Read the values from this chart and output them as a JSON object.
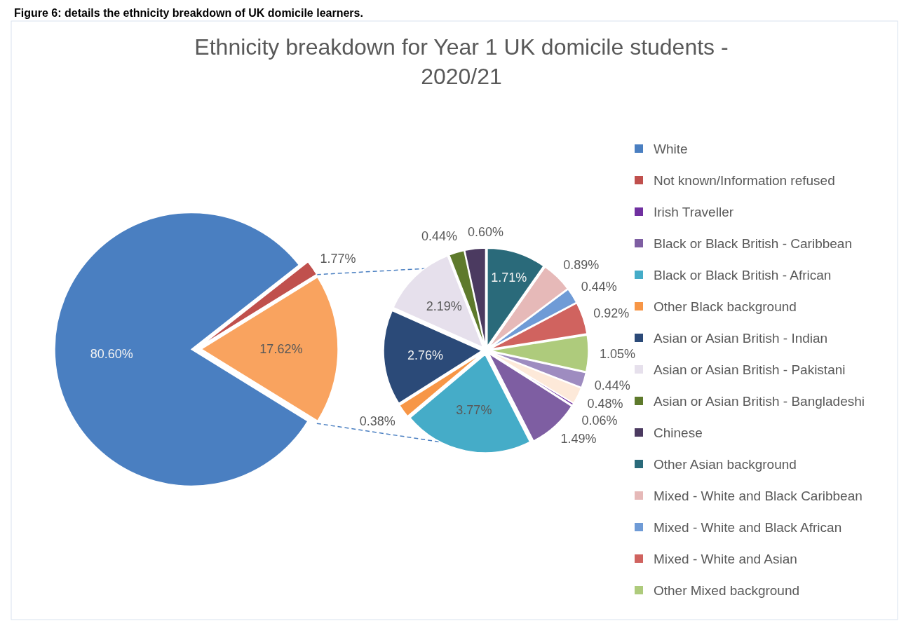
{
  "chart_data": [
    {
      "type": "pie",
      "title": "Ethnicity breakdown for Year 1 UK domicile students - 2020/21",
      "annotations": [
        "Figure 6: details the ethnicity breakdown of UK domicile learners."
      ],
      "categories": [
        "White",
        "Not known/Information refused",
        null
      ],
      "values": [
        80.6,
        1.77,
        17.62
      ],
      "value_labels": [
        "80.60%",
        "1.77%",
        "17.62%"
      ],
      "colors": [
        "#4a7fc1",
        "#c0504d",
        "#f9a35f"
      ],
      "legend": "right"
    },
    {
      "type": "pie",
      "categories": [
        "Irish Traveller",
        "Black or Black British - Caribbean",
        "Black or Black British - African",
        "Other Black background",
        "Asian or Asian British - Indian",
        "Asian or Asian British - Pakistani",
        "Asian or Asian British - Bangladeshi",
        "Chinese",
        "Other Asian background",
        "Mixed - White and Black Caribbean",
        "Mixed - White and Black African",
        "Mixed - White and Asian",
        "Other Mixed background",
        null,
        null
      ],
      "values": [
        0.06,
        1.49,
        3.77,
        0.38,
        2.76,
        2.19,
        0.44,
        0.6,
        1.71,
        0.89,
        0.44,
        0.92,
        1.05,
        0.44,
        0.48
      ],
      "value_labels": [
        "0.06%",
        "1.49%",
        "3.77%",
        "0.38%",
        "2.76%",
        "2.19%",
        "0.44%",
        "0.60%",
        "1.71%",
        "0.89%",
        "0.44%",
        "0.92%",
        "1.05%",
        "0.44%",
        "0.48%"
      ],
      "colors": [
        "#7030a0",
        "#7e5ea2",
        "#45acc8",
        "#f79646",
        "#2b4a78",
        "#e6e0ec",
        "#5e7a2c",
        "#4b3a60",
        "#2a6a7a",
        "#e6b9b8",
        "#6f9bd6",
        "#d0635f",
        "#aecb7c",
        "#9e8cc0",
        "#fde9d9"
      ],
      "legend": "right"
    }
  ]
}
